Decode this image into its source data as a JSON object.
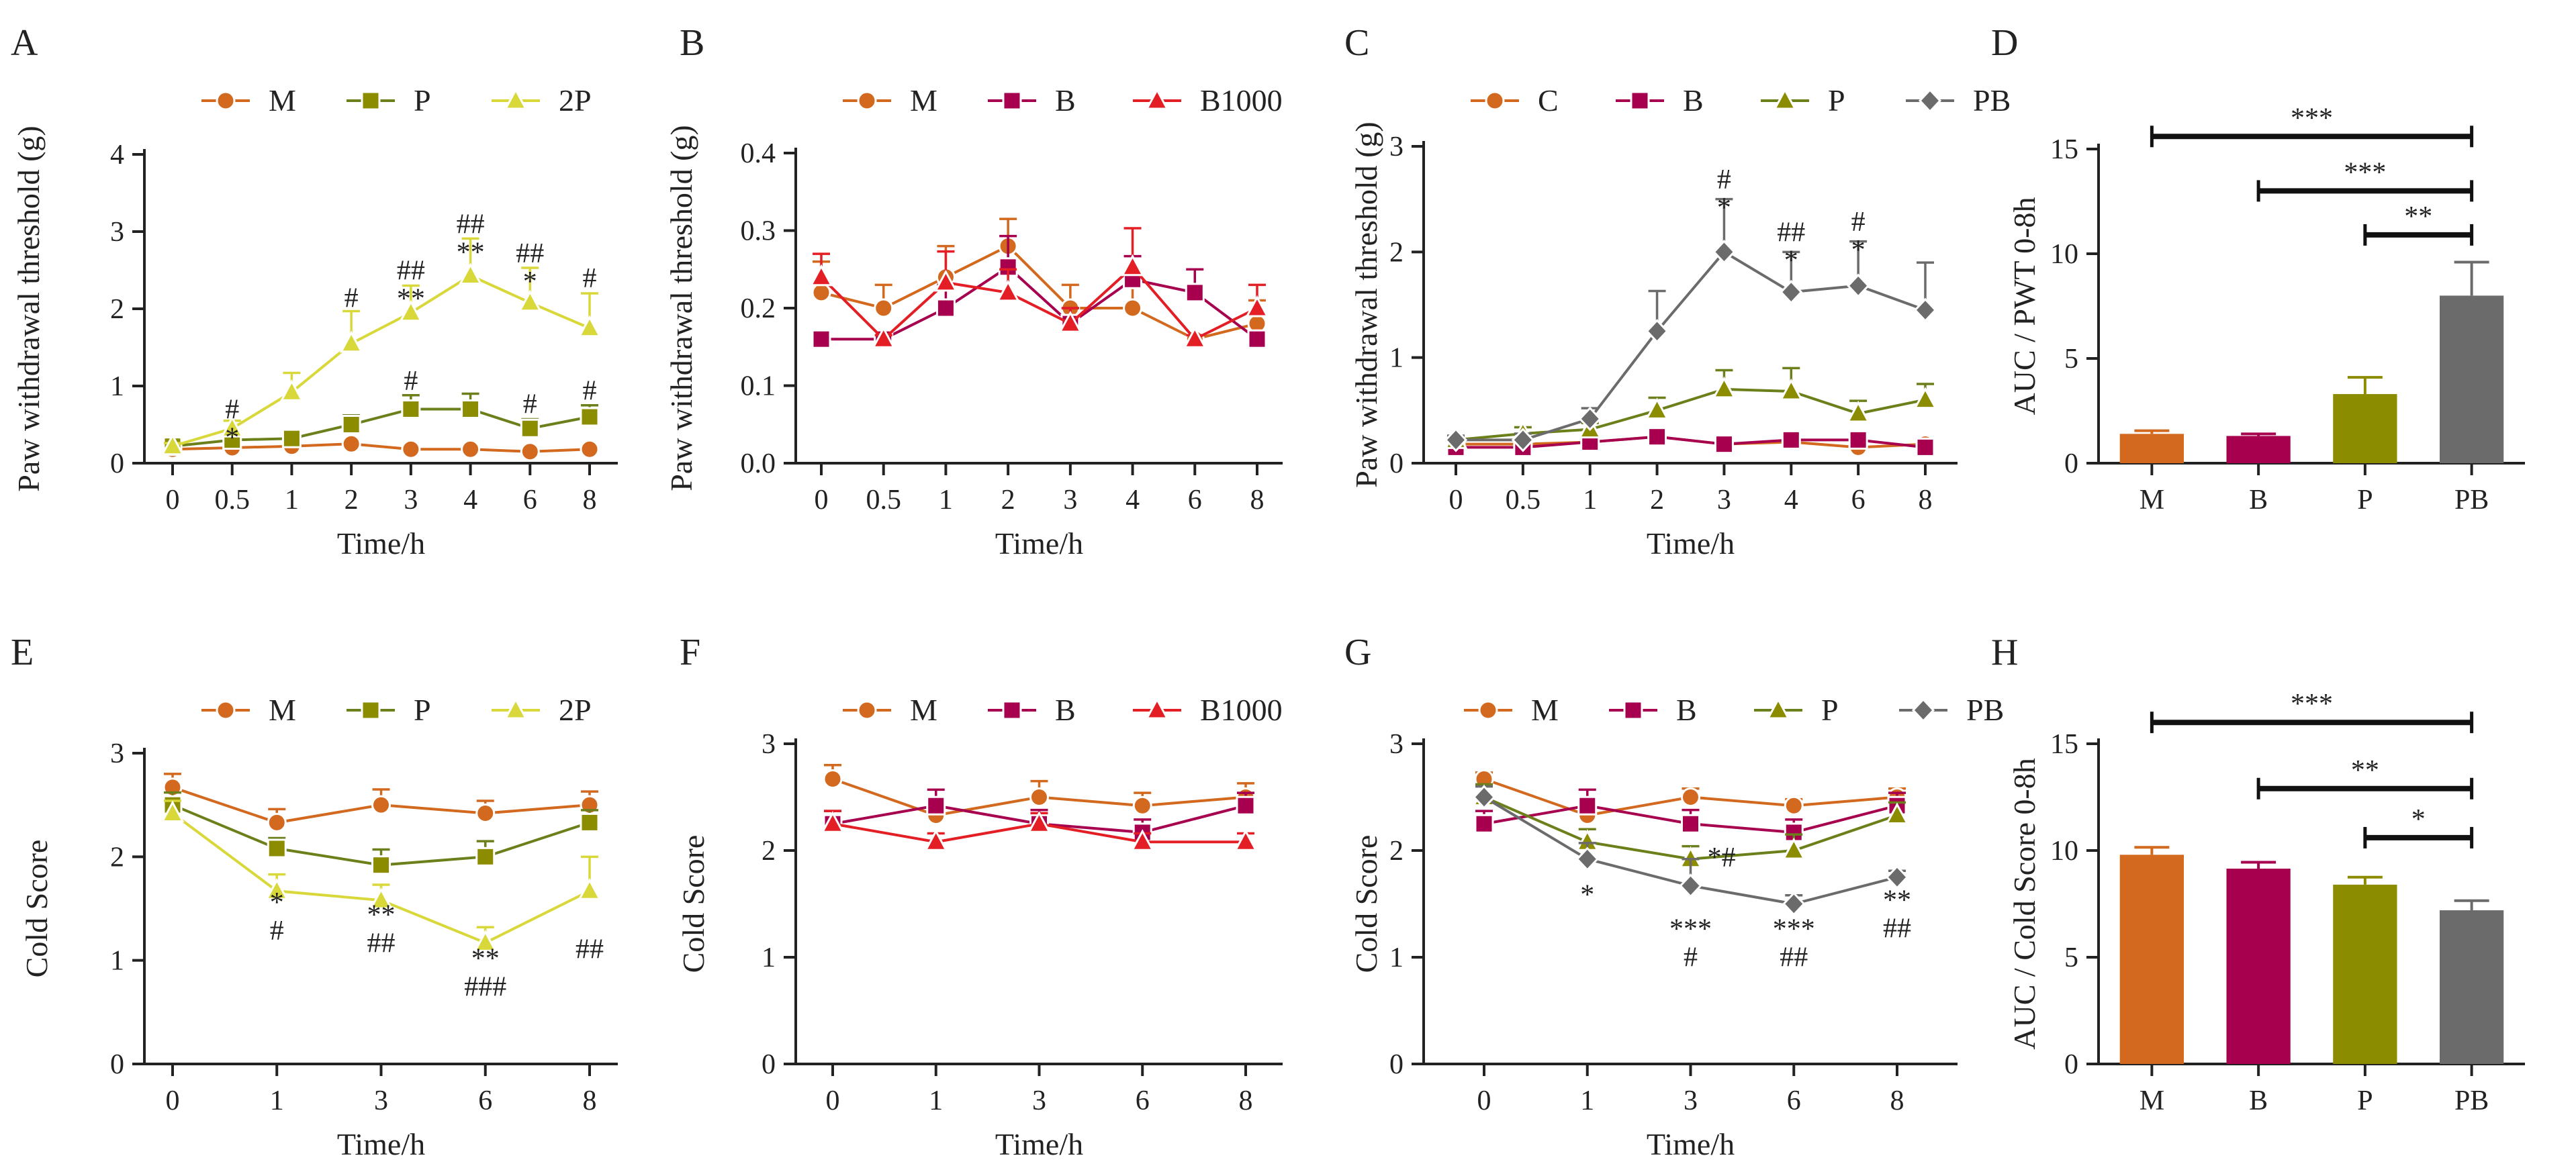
{
  "colors": {
    "M": "#D2691E",
    "C": "#D2691E",
    "B": "#A6004F",
    "P": "#8C8C00",
    "P_line": "#6B7F1A",
    "2P": "#D8D83A",
    "B1000": "#E31E24",
    "PB": "#6B6B6B"
  },
  "chart_data": [
    {
      "id": "A",
      "type": "line",
      "ylabel": "Paw withdrawal threshold (g)",
      "xlabel": "Time/h",
      "categories": [
        "0",
        "0.5",
        "1",
        "2",
        "3",
        "4",
        "6",
        "8"
      ],
      "ylim": [
        0,
        4
      ],
      "yticks": [
        "0",
        "1",
        "2",
        "3",
        "4"
      ],
      "series": [
        {
          "name": "M",
          "marker": "circle",
          "values": [
            0.18,
            0.2,
            0.22,
            0.25,
            0.18,
            0.18,
            0.15,
            0.18
          ],
          "errors": [
            0.03,
            0.03,
            0.03,
            0.04,
            0.03,
            0.03,
            0.03,
            0.03
          ]
        },
        {
          "name": "P",
          "marker": "square",
          "values": [
            0.22,
            0.3,
            0.32,
            0.5,
            0.7,
            0.7,
            0.45,
            0.6
          ],
          "errors": [
            0.04,
            0.06,
            0.06,
            0.12,
            0.18,
            0.2,
            0.12,
            0.15
          ]
        },
        {
          "name": "2P",
          "marker": "triangle",
          "values": [
            0.22,
            0.45,
            0.92,
            1.55,
            1.95,
            2.43,
            2.08,
            1.75
          ],
          "errors": [
            0.04,
            0.1,
            0.25,
            0.42,
            0.35,
            0.48,
            0.45,
            0.45
          ]
        }
      ],
      "annotations": [
        {
          "cat": 1,
          "y": 0.58,
          "lines": [
            "#",
            "*"
          ]
        },
        {
          "cat": 3,
          "y": 2.02,
          "lines": [
            "#"
          ]
        },
        {
          "cat": 4,
          "y": 2.38,
          "lines": [
            "##",
            "**"
          ]
        },
        {
          "cat": 4,
          "y": 0.95,
          "lines": [
            "#"
          ]
        },
        {
          "cat": 5,
          "y": 2.98,
          "lines": [
            "##",
            "**"
          ]
        },
        {
          "cat": 6,
          "y": 2.6,
          "lines": [
            "##",
            "*"
          ]
        },
        {
          "cat": 6,
          "y": 0.65,
          "lines": [
            "#"
          ]
        },
        {
          "cat": 7,
          "y": 2.28,
          "lines": [
            "#"
          ]
        },
        {
          "cat": 7,
          "y": 0.82,
          "lines": [
            "#"
          ]
        }
      ]
    },
    {
      "id": "B",
      "type": "line",
      "ylabel": "Paw withdrawal threshold (g)",
      "xlabel": "Time/h",
      "categories": [
        "0",
        "0.5",
        "1",
        "2",
        "3",
        "4",
        "6",
        "8"
      ],
      "ylim": [
        0,
        0.4
      ],
      "yticks": [
        "0.0",
        "0.1",
        "0.2",
        "0.3",
        "0.4"
      ],
      "series": [
        {
          "name": "M",
          "marker": "circle",
          "values": [
            0.22,
            0.2,
            0.24,
            0.28,
            0.2,
            0.2,
            0.16,
            0.18
          ],
          "errors": [
            0.04,
            0.03,
            0.04,
            0.035,
            0.03,
            0.03,
            0.005,
            0.03
          ]
        },
        {
          "name": "B",
          "marker": "square",
          "values": [
            0.16,
            0.16,
            0.2,
            0.253,
            0.18,
            0.237,
            0.22,
            0.16
          ],
          "errors": [
            0.005,
            0.005,
            0.03,
            0.04,
            0.02,
            0.03,
            0.03,
            0.005
          ]
        },
        {
          "name": "B1000",
          "marker": "triangle",
          "values": [
            0.24,
            0.16,
            0.233,
            0.22,
            0.18,
            0.253,
            0.16,
            0.2
          ],
          "errors": [
            0.03,
            0.005,
            0.04,
            0.03,
            0.02,
            0.05,
            0.005,
            0.03
          ]
        }
      ],
      "annotations": []
    },
    {
      "id": "C",
      "type": "line",
      "ylabel": "Paw withdrawal threshold (g)",
      "xlabel": "Time/h",
      "categories": [
        "0",
        "0.5",
        "1",
        "2",
        "3",
        "4",
        "6",
        "8"
      ],
      "ylim": [
        0,
        3
      ],
      "yticks": [
        "0",
        "1",
        "2",
        "3"
      ],
      "series": [
        {
          "name": "C",
          "marker": "circle",
          "values": [
            0.18,
            0.18,
            0.2,
            0.25,
            0.18,
            0.2,
            0.15,
            0.18
          ],
          "errors": [
            0.03,
            0.03,
            0.03,
            0.04,
            0.03,
            0.03,
            0.03,
            0.03
          ]
        },
        {
          "name": "B",
          "marker": "square",
          "values": [
            0.15,
            0.15,
            0.2,
            0.25,
            0.18,
            0.22,
            0.22,
            0.15
          ],
          "errors": [
            0.02,
            0.02,
            0.03,
            0.04,
            0.03,
            0.04,
            0.04,
            0.02
          ]
        },
        {
          "name": "P",
          "marker": "triangle",
          "values": [
            0.22,
            0.28,
            0.32,
            0.5,
            0.7,
            0.68,
            0.47,
            0.6
          ],
          "errors": [
            0.04,
            0.06,
            0.06,
            0.12,
            0.18,
            0.22,
            0.12,
            0.15
          ]
        },
        {
          "name": "PB",
          "marker": "diamond",
          "values": [
            0.22,
            0.22,
            0.42,
            1.25,
            2.0,
            1.62,
            1.68,
            1.45
          ],
          "errors": [
            0.04,
            0.06,
            0.1,
            0.38,
            0.5,
            0.38,
            0.42,
            0.45
          ]
        }
      ],
      "annotations": [
        {
          "cat": 4,
          "y": 2.6,
          "lines": [
            "#",
            "*"
          ]
        },
        {
          "cat": 5,
          "y": 2.1,
          "lines": [
            "##",
            "*"
          ]
        },
        {
          "cat": 6,
          "y": 2.2,
          "lines": [
            "#",
            "*"
          ]
        }
      ]
    },
    {
      "id": "D",
      "type": "bar",
      "ylabel": "AUC / PWT 0-8h",
      "xlabel": "",
      "categories": [
        "M",
        "B",
        "P",
        "PB"
      ],
      "ylim": [
        0,
        15
      ],
      "yticks": [
        "0",
        "5",
        "10",
        "15"
      ],
      "values": [
        1.4,
        1.3,
        3.3,
        8.0
      ],
      "errors": [
        0.15,
        0.1,
        0.8,
        1.6
      ],
      "bar_colors": [
        "M",
        "B",
        "P",
        "PB"
      ],
      "brackets": [
        {
          "from": 0,
          "to": 3,
          "y": 15.6,
          "label": "***"
        },
        {
          "from": 1,
          "to": 3,
          "y": 13.0,
          "label": "***"
        },
        {
          "from": 2,
          "to": 3,
          "y": 10.9,
          "label": "**"
        }
      ]
    },
    {
      "id": "E",
      "type": "line",
      "ylabel": "Cold Score",
      "xlabel": "Time/h",
      "categories": [
        "0",
        "1",
        "3",
        "6",
        "8"
      ],
      "ylim": [
        0,
        3
      ],
      "yticks": [
        "0",
        "1",
        "2",
        "3"
      ],
      "series": [
        {
          "name": "M",
          "marker": "circle",
          "values": [
            2.67,
            2.33,
            2.5,
            2.42,
            2.5
          ],
          "errors": [
            0.13,
            0.13,
            0.15,
            0.12,
            0.13
          ]
        },
        {
          "name": "P",
          "marker": "square",
          "values": [
            2.5,
            2.08,
            1.92,
            2.0,
            2.33
          ],
          "errors": [
            0.12,
            0.1,
            0.15,
            0.15,
            0.12
          ]
        },
        {
          "name": "2P",
          "marker": "triangle",
          "values": [
            2.42,
            1.67,
            1.58,
            1.17,
            1.67
          ],
          "errors": [
            0.12,
            0.16,
            0.15,
            0.15,
            0.33
          ]
        }
      ],
      "annotations": [
        {
          "cat": 1,
          "y": 1.47,
          "lines": [
            "*",
            "#"
          ]
        },
        {
          "cat": 2,
          "y": 1.35,
          "lines": [
            "**",
            "##"
          ]
        },
        {
          "cat": 3,
          "y": 0.93,
          "lines": [
            "**",
            "###"
          ]
        },
        {
          "cat": 4,
          "y": 1.02,
          "lines": [
            "##"
          ]
        }
      ]
    },
    {
      "id": "F",
      "type": "line",
      "ylabel": "Cold Score",
      "xlabel": "Time/h",
      "categories": [
        "0",
        "1",
        "3",
        "6",
        "8"
      ],
      "ylim": [
        0,
        3
      ],
      "yticks": [
        "0",
        "1",
        "2",
        "3"
      ],
      "series": [
        {
          "name": "M",
          "marker": "circle",
          "values": [
            2.67,
            2.33,
            2.5,
            2.42,
            2.5
          ],
          "errors": [
            0.13,
            0.13,
            0.15,
            0.12,
            0.13
          ]
        },
        {
          "name": "B",
          "marker": "square",
          "values": [
            2.25,
            2.42,
            2.25,
            2.17,
            2.42
          ],
          "errors": [
            0.12,
            0.15,
            0.13,
            0.12,
            0.12
          ]
        },
        {
          "name": "B1000",
          "marker": "triangle",
          "values": [
            2.25,
            2.08,
            2.25,
            2.08,
            2.08
          ],
          "errors": [
            0.12,
            0.08,
            0.1,
            0.08,
            0.08
          ]
        }
      ],
      "annotations": []
    },
    {
      "id": "G",
      "type": "line",
      "ylabel": "Cold Score",
      "xlabel": "Time/h",
      "categories": [
        "0",
        "1",
        "3",
        "6",
        "8"
      ],
      "ylim": [
        0,
        3
      ],
      "yticks": [
        "0",
        "1",
        "2",
        "3"
      ],
      "series": [
        {
          "name": "M",
          "marker": "circle",
          "values": [
            2.67,
            2.33,
            2.5,
            2.42,
            2.5
          ],
          "errors": [
            0.06,
            0.13,
            0.08,
            0.06,
            0.08
          ]
        },
        {
          "name": "B",
          "marker": "square",
          "values": [
            2.25,
            2.42,
            2.25,
            2.17,
            2.42
          ],
          "errors": [
            0.12,
            0.15,
            0.13,
            0.12,
            0.12
          ]
        },
        {
          "name": "P",
          "marker": "triangle",
          "values": [
            2.5,
            2.08,
            1.92,
            2.0,
            2.33
          ],
          "errors": [
            0.12,
            0.12,
            0.12,
            0.15,
            0.12
          ]
        },
        {
          "name": "PB",
          "marker": "diamond",
          "values": [
            2.5,
            1.92,
            1.67,
            1.5,
            1.75
          ],
          "errors": [
            0.1,
            0.15,
            0.25,
            0.08,
            0.06
          ]
        }
      ],
      "annotations": [
        {
          "cat": 1,
          "y": 1.5,
          "lines": [
            "*"
          ]
        },
        {
          "cat": 2,
          "y": 1.18,
          "lines": [
            "***",
            "#"
          ]
        },
        {
          "cat": 2.3,
          "y": 1.85,
          "lines": [
            "*#"
          ]
        },
        {
          "cat": 3,
          "y": 1.18,
          "lines": [
            "***",
            "##"
          ]
        },
        {
          "cat": 4,
          "y": 1.45,
          "lines": [
            "**",
            "##"
          ]
        }
      ]
    },
    {
      "id": "H",
      "type": "bar",
      "ylabel": "AUC / Cold Score 0-8h",
      "xlabel": "",
      "categories": [
        "M",
        "B",
        "P",
        "PB"
      ],
      "ylim": [
        0,
        15
      ],
      "yticks": [
        "0",
        "5",
        "10",
        "15"
      ],
      "values": [
        9.8,
        9.15,
        8.4,
        7.2
      ],
      "errors": [
        0.35,
        0.3,
        0.35,
        0.45
      ],
      "bar_colors": [
        "M",
        "B",
        "P",
        "PB"
      ],
      "brackets": [
        {
          "from": 0,
          "to": 3,
          "y": 16.0,
          "label": "***"
        },
        {
          "from": 1,
          "to": 3,
          "y": 12.9,
          "label": "**"
        },
        {
          "from": 2,
          "to": 3,
          "y": 10.6,
          "label": "*"
        }
      ]
    }
  ]
}
